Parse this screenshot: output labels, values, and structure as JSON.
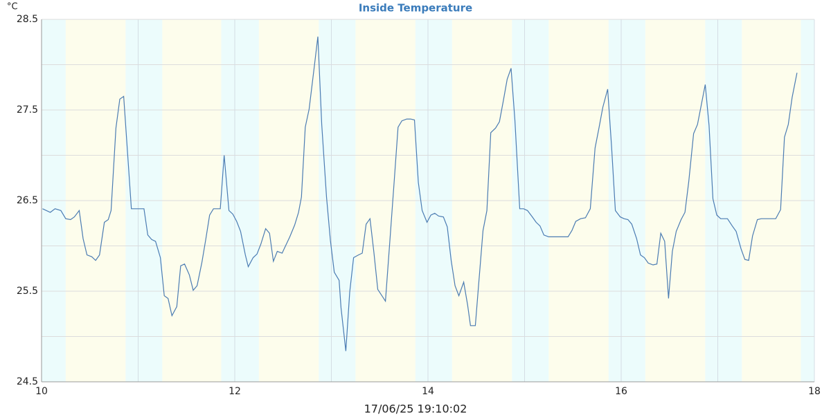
{
  "chart_data": {
    "type": "line",
    "title": "Inside Temperature",
    "y_unit": "°C",
    "timestamp": "17/06/25 19:10:02",
    "color": "#4a7bb2",
    "title_color": "#3b7cbb",
    "grid": true,
    "xlim": [
      10,
      18
    ],
    "xticks": [
      10,
      12,
      14,
      16,
      18
    ],
    "x_grid_minor": [
      11,
      13,
      15,
      17
    ],
    "ylim": [
      24.5,
      28.5
    ],
    "yticks": [
      24.5,
      25.5,
      26.5,
      27.5,
      28.5
    ],
    "y_grid_minor": [
      25,
      26,
      27,
      28
    ],
    "bands": [
      {
        "from": 10,
        "to": 10.25,
        "color": "#ecfcfc"
      },
      {
        "from": 10.25,
        "to": 10.87,
        "color": "#fdfdec"
      },
      {
        "from": 10.87,
        "to": 11.25,
        "color": "#ecfcfc"
      },
      {
        "from": 11.25,
        "to": 11.86,
        "color": "#fdfdec"
      },
      {
        "from": 11.86,
        "to": 12.25,
        "color": "#ecfcfc"
      },
      {
        "from": 12.25,
        "to": 12.87,
        "color": "#fdfdec"
      },
      {
        "from": 12.87,
        "to": 13.25,
        "color": "#ecfcfc"
      },
      {
        "from": 13.25,
        "to": 13.87,
        "color": "#fdfdec"
      },
      {
        "from": 13.87,
        "to": 14.25,
        "color": "#ecfcfc"
      },
      {
        "from": 14.25,
        "to": 14.87,
        "color": "#fdfdec"
      },
      {
        "from": 14.87,
        "to": 15.25,
        "color": "#ecfcfc"
      },
      {
        "from": 15.25,
        "to": 15.87,
        "color": "#fdfdec"
      },
      {
        "from": 15.87,
        "to": 16.25,
        "color": "#ecfcfc"
      },
      {
        "from": 16.25,
        "to": 16.87,
        "color": "#fdfdec"
      },
      {
        "from": 16.87,
        "to": 17.25,
        "color": "#ecfcfc"
      },
      {
        "from": 17.25,
        "to": 17.86,
        "color": "#fdfdec"
      },
      {
        "from": 17.86,
        "to": 18,
        "color": "#ecfcfc"
      }
    ],
    "x": [
      10.01,
      10.09,
      10.14,
      10.2,
      10.25,
      10.3,
      10.34,
      10.39,
      10.43,
      10.47,
      10.52,
      10.56,
      10.6,
      10.65,
      10.69,
      10.72,
      10.77,
      10.81,
      10.85,
      10.9,
      10.93,
      10.98,
      11.06,
      11.1,
      11.14,
      11.18,
      11.23,
      11.27,
      11.31,
      11.35,
      11.4,
      11.44,
      11.48,
      11.53,
      11.57,
      11.61,
      11.66,
      11.7,
      11.74,
      11.78,
      11.85,
      11.89,
      11.94,
      11.98,
      12.02,
      12.06,
      12.11,
      12.14,
      12.19,
      12.23,
      12.27,
      12.32,
      12.36,
      12.4,
      12.44,
      12.49,
      12.53,
      12.57,
      12.62,
      12.66,
      12.69,
      12.73,
      12.77,
      12.82,
      12.86,
      12.9,
      12.95,
      12.99,
      13.03,
      13.08,
      13.1,
      13.15,
      13.19,
      13.23,
      13.28,
      13.32,
      13.36,
      13.4,
      13.44,
      13.48,
      13.53,
      13.56,
      13.61,
      13.65,
      13.69,
      13.73,
      13.78,
      13.82,
      13.86,
      13.9,
      13.94,
      13.99,
      14.03,
      14.07,
      14.11,
      14.16,
      14.2,
      14.24,
      14.28,
      14.32,
      14.37,
      14.41,
      14.44,
      14.49,
      14.52,
      14.57,
      14.61,
      14.65,
      14.7,
      14.74,
      14.78,
      14.82,
      14.86,
      14.9,
      14.95,
      14.99,
      15.03,
      15.08,
      15.12,
      15.16,
      15.2,
      15.25,
      15.45,
      15.49,
      15.53,
      15.58,
      15.63,
      15.68,
      15.73,
      15.77,
      15.81,
      15.86,
      15.9,
      15.94,
      15.99,
      16.03,
      16.07,
      16.11,
      16.16,
      16.2,
      16.24,
      16.28,
      16.33,
      16.37,
      16.41,
      16.45,
      16.49,
      16.53,
      16.57,
      16.62,
      16.66,
      16.7,
      16.75,
      16.79,
      16.83,
      16.87,
      16.91,
      16.95,
      16.99,
      17.03,
      17.1,
      17.15,
      17.19,
      17.24,
      17.28,
      17.32,
      17.36,
      17.41,
      17.45,
      17.6,
      17.65,
      17.69,
      17.73,
      17.77,
      17.82
    ],
    "values": [
      26.41,
      26.37,
      26.41,
      26.39,
      26.3,
      26.29,
      26.32,
      26.39,
      26.08,
      25.9,
      25.88,
      25.84,
      25.9,
      26.26,
      26.29,
      26.39,
      27.3,
      27.62,
      27.65,
      26.87,
      26.41,
      26.41,
      26.41,
      26.12,
      26.07,
      26.05,
      25.87,
      25.45,
      25.42,
      25.23,
      25.33,
      25.78,
      25.8,
      25.68,
      25.51,
      25.56,
      25.82,
      26.07,
      26.34,
      26.41,
      26.41,
      27.0,
      26.39,
      26.35,
      26.27,
      26.16,
      25.9,
      25.77,
      25.87,
      25.91,
      26.02,
      26.19,
      26.14,
      25.83,
      25.94,
      25.92,
      26.01,
      26.1,
      26.23,
      26.37,
      26.54,
      27.31,
      27.51,
      27.95,
      28.31,
      27.34,
      26.54,
      26.06,
      25.71,
      25.62,
      25.32,
      24.84,
      25.49,
      25.87,
      25.9,
      25.92,
      26.24,
      26.3,
      25.93,
      25.52,
      25.44,
      25.39,
      26.12,
      26.71,
      27.31,
      27.38,
      27.4,
      27.4,
      27.39,
      26.7,
      26.39,
      26.26,
      26.34,
      26.36,
      26.33,
      26.32,
      26.21,
      25.84,
      25.56,
      25.45,
      25.6,
      25.35,
      25.12,
      25.12,
      25.51,
      26.17,
      26.39,
      27.25,
      27.3,
      27.37,
      27.6,
      27.84,
      27.96,
      27.38,
      26.41,
      26.41,
      26.39,
      26.32,
      26.26,
      26.22,
      26.12,
      26.1,
      26.1,
      26.17,
      26.27,
      26.3,
      26.31,
      26.41,
      27.08,
      27.3,
      27.53,
      27.73,
      27.1,
      26.39,
      26.32,
      26.3,
      26.29,
      26.24,
      26.08,
      25.9,
      25.87,
      25.81,
      25.79,
      25.8,
      26.14,
      26.05,
      25.42,
      25.94,
      26.16,
      26.29,
      26.37,
      26.71,
      27.24,
      27.34,
      27.56,
      27.78,
      27.33,
      26.52,
      26.34,
      26.3,
      26.3,
      26.22,
      26.16,
      25.97,
      25.85,
      25.84,
      26.11,
      26.29,
      26.3,
      26.3,
      26.4,
      27.2,
      27.34,
      27.64,
      27.91
    ]
  }
}
